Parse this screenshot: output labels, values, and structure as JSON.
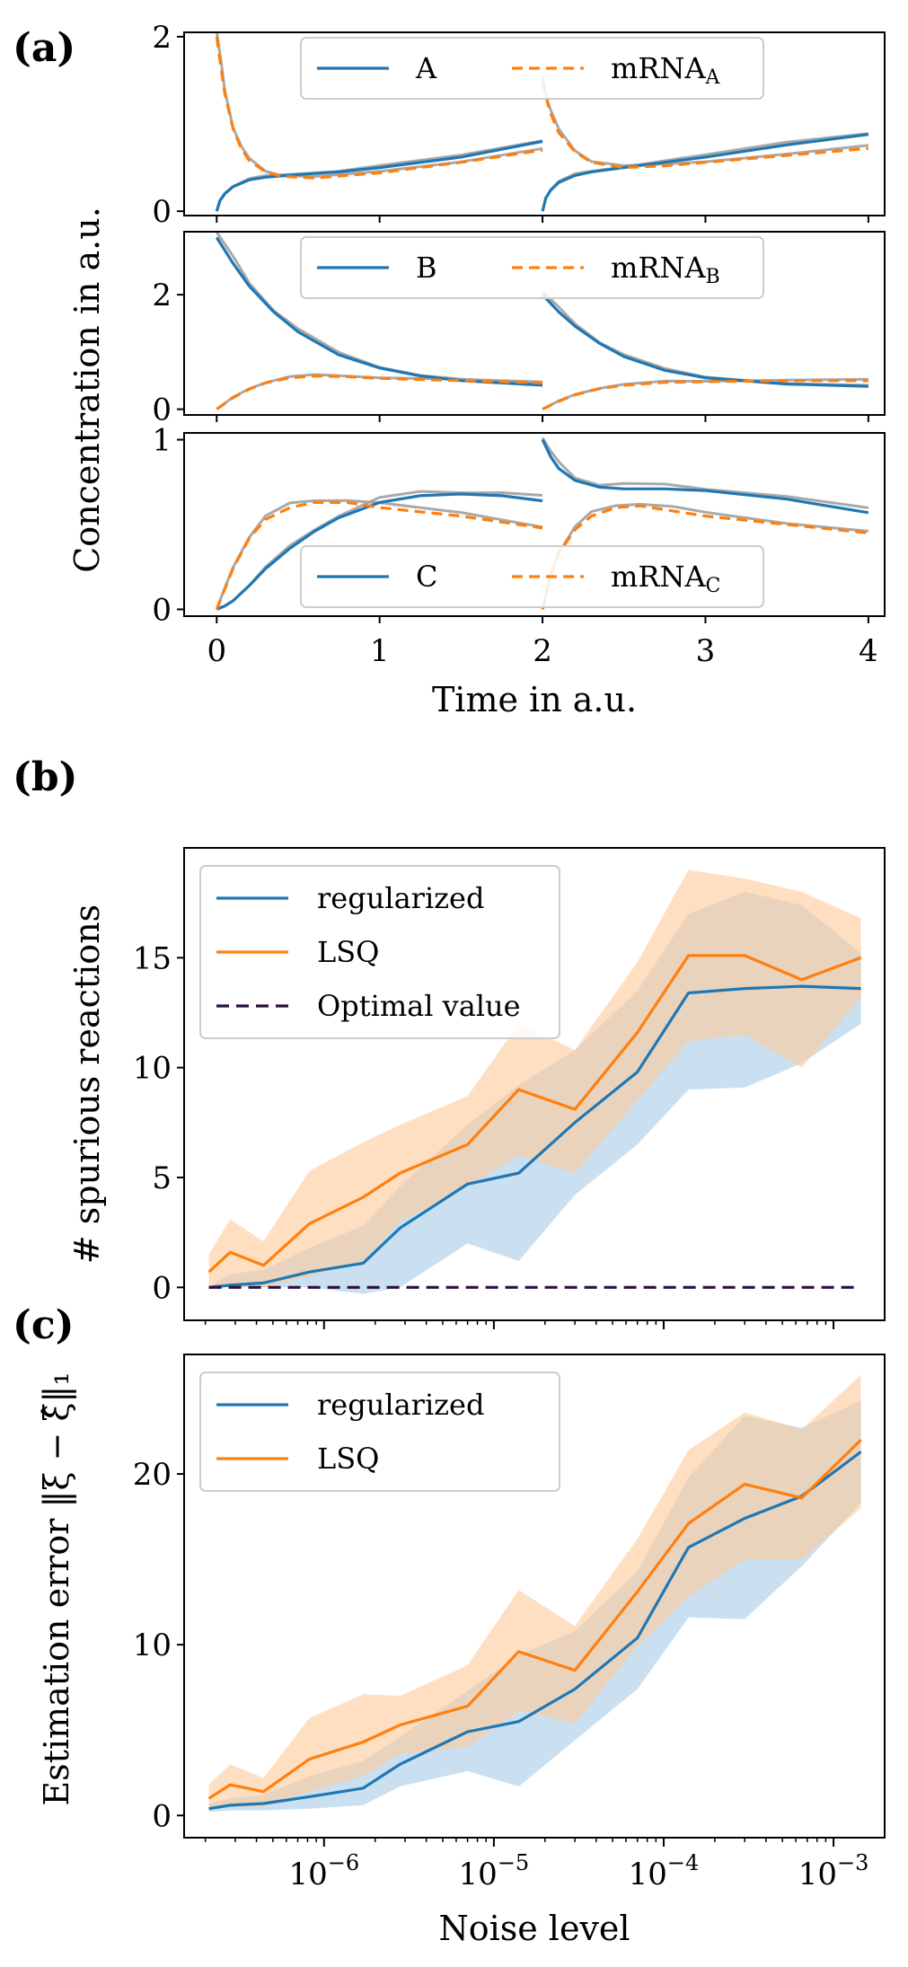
{
  "chart_data": [
    {
      "panel": "(a)",
      "type": "line",
      "xlabel": "Time in a.u.",
      "ylabel": "Concentration in a.u.",
      "xlim": [
        -0.2,
        4.1
      ],
      "xticks": [
        0,
        1,
        2,
        3,
        4
      ],
      "grid": false,
      "subplots": [
        {
          "ylim": [
            -0.05,
            2.05
          ],
          "yticks": [
            0,
            2
          ],
          "legend": "top-center",
          "series": [
            {
              "name": "A",
              "color": "#1f77b4",
              "style": "solid",
              "x": [
                0,
                0.02,
                0.05,
                0.1,
                0.2,
                0.3,
                0.5,
                0.75,
                1.0,
                1.5,
                2.0,
                null,
                2.0,
                2.02,
                2.05,
                2.1,
                2.2,
                2.3,
                2.5,
                3.0,
                3.5,
                4.0
              ],
              "y": [
                0.0,
                0.12,
                0.2,
                0.28,
                0.36,
                0.39,
                0.42,
                0.45,
                0.5,
                0.62,
                0.8,
                null,
                0.0,
                0.15,
                0.24,
                0.33,
                0.41,
                0.45,
                0.5,
                0.62,
                0.76,
                0.88
              ]
            },
            {
              "name": "mRNA",
              "subscript": "A",
              "color": "#ff7f0e",
              "style": "dashed",
              "x": [
                0,
                0.03,
                0.05,
                0.1,
                0.15,
                0.2,
                0.3,
                0.4,
                0.6,
                1.0,
                1.5,
                2.0,
                null,
                2.0,
                2.03,
                2.05,
                2.1,
                2.2,
                2.3,
                2.5,
                2.75,
                3.0,
                3.5,
                4.0
              ],
              "y": [
                2.0,
                1.6,
                1.35,
                0.95,
                0.72,
                0.58,
                0.45,
                0.4,
                0.38,
                0.44,
                0.56,
                0.7,
                null,
                1.5,
                1.25,
                1.12,
                0.9,
                0.68,
                0.56,
                0.5,
                0.52,
                0.56,
                0.64,
                0.72
              ]
            }
          ]
        },
        {
          "ylim": [
            -0.1,
            3.1
          ],
          "yticks": [
            0,
            2
          ],
          "legend": "top-center",
          "series": [
            {
              "name": "B",
              "color": "#1f77b4",
              "style": "solid",
              "x": [
                0,
                0.1,
                0.2,
                0.35,
                0.5,
                0.75,
                1.0,
                1.25,
                1.5,
                2.0,
                null,
                2.0,
                2.1,
                2.2,
                2.35,
                2.5,
                2.75,
                3.0,
                3.5,
                4.0
              ],
              "y": [
                3.0,
                2.55,
                2.15,
                1.7,
                1.35,
                0.95,
                0.72,
                0.58,
                0.5,
                0.42,
                null,
                2.0,
                1.7,
                1.45,
                1.15,
                0.92,
                0.68,
                0.55,
                0.44,
                0.4
              ]
            },
            {
              "name": "mRNA",
              "subscript": "B",
              "color": "#ff7f0e",
              "style": "dashed",
              "x": [
                0,
                0.1,
                0.2,
                0.3,
                0.45,
                0.6,
                0.8,
                1.0,
                1.5,
                2.0,
                null,
                2.0,
                2.1,
                2.2,
                2.35,
                2.5,
                2.75,
                3.0,
                3.5,
                4.0
              ],
              "y": [
                0.0,
                0.2,
                0.35,
                0.46,
                0.55,
                0.58,
                0.57,
                0.54,
                0.5,
                0.46,
                null,
                0.0,
                0.14,
                0.25,
                0.36,
                0.42,
                0.47,
                0.48,
                0.5,
                0.5
              ]
            }
          ]
        },
        {
          "ylim": [
            -0.04,
            1.04
          ],
          "yticks": [
            0,
            1
          ],
          "legend": "bottom-center",
          "series": [
            {
              "name": "C",
              "color": "#1f77b4",
              "style": "solid",
              "x": [
                0,
                0.05,
                0.1,
                0.2,
                0.3,
                0.45,
                0.6,
                0.75,
                1.0,
                1.25,
                1.5,
                1.75,
                2.0,
                null,
                2.0,
                2.05,
                2.1,
                2.2,
                2.35,
                2.5,
                2.75,
                3.0,
                3.5,
                4.0
              ],
              "y": [
                0.0,
                0.02,
                0.05,
                0.14,
                0.24,
                0.36,
                0.46,
                0.54,
                0.63,
                0.67,
                0.68,
                0.67,
                0.64,
                null,
                1.0,
                0.9,
                0.83,
                0.76,
                0.72,
                0.71,
                0.71,
                0.7,
                0.65,
                0.57
              ]
            },
            {
              "name": "mRNA",
              "subscript": "C",
              "color": "#ff7f0e",
              "style": "dashed",
              "x": [
                0,
                0.05,
                0.1,
                0.2,
                0.3,
                0.45,
                0.6,
                0.8,
                1.0,
                1.5,
                2.0,
                null,
                2.0,
                2.05,
                2.1,
                2.2,
                2.3,
                2.45,
                2.6,
                2.8,
                3.0,
                3.5,
                4.0
              ],
              "y": [
                0.0,
                0.12,
                0.24,
                0.42,
                0.53,
                0.6,
                0.63,
                0.63,
                0.6,
                0.55,
                0.48,
                null,
                0.0,
                0.2,
                0.33,
                0.47,
                0.55,
                0.6,
                0.61,
                0.58,
                0.55,
                0.5,
                0.45
              ]
            }
          ]
        }
      ]
    },
    {
      "panel": "(b)",
      "type": "line",
      "xscale": "log",
      "xlim": [
        1.5e-07,
        0.002
      ],
      "ylim": [
        -1.5,
        20
      ],
      "yticks": [
        0,
        5,
        10,
        15
      ],
      "ylabel": "# spurious reactions",
      "xlabel": "",
      "legend": "top-left",
      "grid": false,
      "x": [
        2.1e-07,
        2.8e-07,
        4.4e-07,
        8.2e-07,
        1.7e-06,
        2.8e-06,
        7e-06,
        1.4e-05,
        3e-05,
        7e-05,
        0.00014,
        0.0003,
        0.00065,
        0.00145
      ],
      "series": [
        {
          "name": "regularized",
          "color": "#1f77b4",
          "values": [
            0.0,
            0.1,
            0.2,
            0.7,
            1.1,
            2.7,
            4.7,
            5.2,
            7.5,
            9.8,
            13.4,
            13.6,
            13.7,
            13.6
          ],
          "band_lower": [
            0.0,
            0.0,
            0.0,
            0.0,
            -0.3,
            0.0,
            2.0,
            1.2,
            4.2,
            6.5,
            9.0,
            9.1,
            10.2,
            12.0
          ],
          "band_upper": [
            0.0,
            0.6,
            0.8,
            1.8,
            2.8,
            4.6,
            7.4,
            9.2,
            10.8,
            13.5,
            17.0,
            18.0,
            17.4,
            15.2
          ]
        },
        {
          "name": "LSQ",
          "color": "#ff7f0e",
          "values": [
            0.7,
            1.6,
            1.0,
            2.9,
            4.1,
            5.2,
            6.5,
            9.0,
            8.1,
            11.6,
            15.1,
            15.1,
            14.0,
            15.0
          ],
          "band_lower": [
            0.0,
            0.0,
            0.0,
            0.5,
            1.2,
            3.0,
            4.6,
            6.0,
            5.2,
            8.5,
            11.2,
            11.5,
            10.0,
            13.2
          ],
          "band_upper": [
            1.5,
            3.1,
            2.1,
            5.3,
            6.6,
            7.4,
            8.7,
            12.0,
            10.8,
            14.8,
            19.0,
            18.6,
            18.0,
            16.8
          ]
        },
        {
          "name": "Optimal value",
          "color": "#2b0f3f",
          "style": "dashed",
          "values": [
            0,
            0,
            0,
            0,
            0,
            0,
            0,
            0,
            0,
            0,
            0,
            0,
            0,
            0
          ]
        }
      ]
    },
    {
      "panel": "(c)",
      "type": "line",
      "xscale": "log",
      "xlim": [
        1.5e-07,
        0.002
      ],
      "ylim": [
        -1.3,
        27
      ],
      "yticks": [
        0,
        10,
        20
      ],
      "ylabel": "Estimation error ‖ξ − ξ̂‖₁",
      "xlabel": "Noise level",
      "xtick_labels": [
        "10−6",
        "10−5",
        "10−4",
        "10−3"
      ],
      "legend": "top-left",
      "grid": false,
      "x": [
        2.1e-07,
        2.8e-07,
        4.4e-07,
        8.2e-07,
        1.7e-06,
        2.8e-06,
        7e-06,
        1.4e-05,
        3e-05,
        7e-05,
        0.00014,
        0.0003,
        0.00065,
        0.00145
      ],
      "series": [
        {
          "name": "regularized",
          "color": "#1f77b4",
          "values": [
            0.4,
            0.6,
            0.7,
            1.1,
            1.6,
            3.0,
            4.9,
            5.5,
            7.4,
            10.4,
            15.7,
            17.4,
            18.7,
            21.3
          ],
          "band_lower": [
            0.2,
            0.3,
            0.3,
            0.4,
            0.6,
            1.7,
            2.6,
            1.7,
            4.4,
            7.4,
            11.6,
            11.5,
            14.6,
            18.3
          ],
          "band_upper": [
            0.7,
            1.0,
            1.2,
            2.3,
            3.2,
            4.6,
            7.3,
            9.4,
            10.8,
            14.3,
            19.8,
            23.4,
            22.7,
            24.3
          ]
        },
        {
          "name": "LSQ",
          "color": "#ff7f0e",
          "values": [
            1.0,
            1.8,
            1.4,
            3.3,
            4.3,
            5.3,
            6.4,
            9.6,
            8.5,
            13.1,
            17.1,
            19.4,
            18.6,
            22.0
          ],
          "band_lower": [
            0.3,
            0.5,
            0.5,
            1.4,
            2.3,
            3.6,
            4.0,
            6.1,
            5.4,
            9.9,
            12.8,
            15.0,
            15.0,
            18.0
          ],
          "band_upper": [
            1.8,
            3.0,
            2.2,
            5.7,
            7.1,
            7.0,
            8.8,
            13.2,
            11.1,
            16.2,
            21.4,
            23.6,
            22.6,
            25.8
          ]
        }
      ]
    }
  ]
}
